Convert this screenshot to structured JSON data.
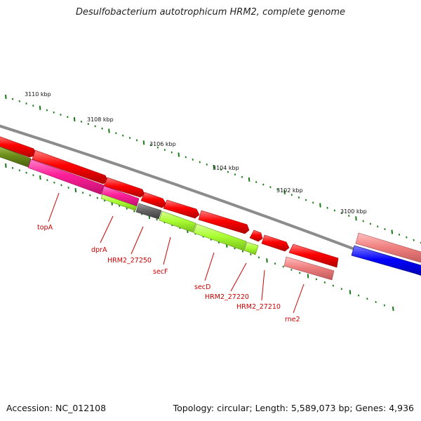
{
  "title": "Desulfobacterium autotrophicum HRM2, complete genome",
  "footer": {
    "accession": "Accession: NC_012108",
    "summary": "Topology: circular; Length: 5,589,073 bp; Genes: 4,936"
  },
  "ruler": {
    "unit": "kbp",
    "labels": [
      "3110 kbp",
      "3108 kbp",
      "3106 kbp",
      "3104 kbp",
      "3102 kbp",
      "3100 kbp"
    ]
  },
  "genes": [
    {
      "name": "topA",
      "color": "#ff1f99"
    },
    {
      "name": "dprA",
      "color": "#aaff33"
    },
    {
      "name": "HRM2_27250",
      "color": "#666666"
    },
    {
      "name": "secF",
      "color": "#aaff33"
    },
    {
      "name": "secD",
      "color": "#aaff33"
    },
    {
      "name": "HRM2_27220",
      "color": "#ff0000"
    },
    {
      "name": "HRM2_27210",
      "color": "#ff0000"
    },
    {
      "name": "rne2",
      "color": "#f08080"
    }
  ],
  "colors": {
    "cds_forward": "#ff0000",
    "backbone": "#8c8c8c",
    "olive_feature": "#6e8f1a",
    "blue_feature": "#0000ff",
    "tick": "#1a7a1a"
  }
}
